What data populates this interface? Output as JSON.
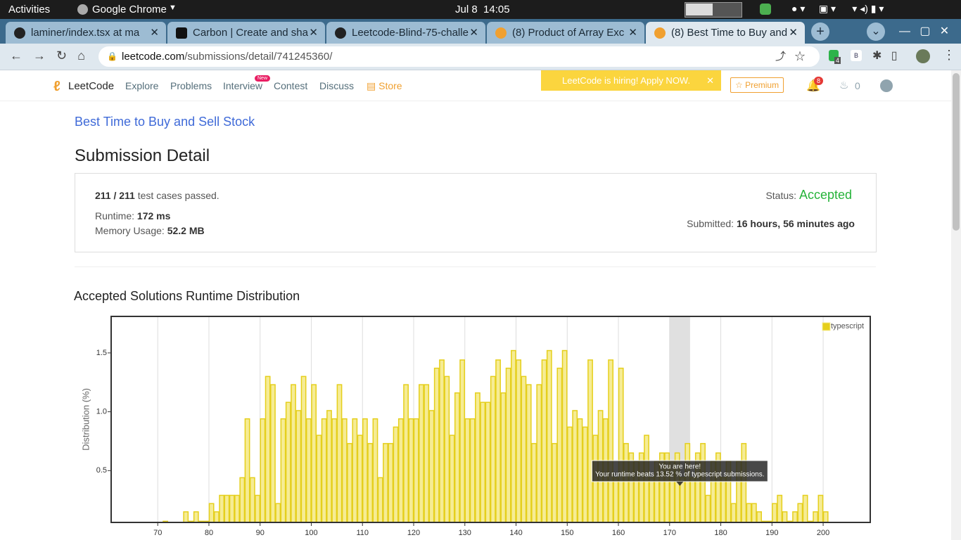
{
  "system_bar": {
    "activities": "Activities",
    "app": "Google Chrome",
    "clock": "Jul 8  14:05"
  },
  "tabs": [
    "laminer/index.tsx at ma",
    "Carbon | Create and sha",
    "Leetcode-Blind-75-challe",
    "(8) Product of Array Exc",
    "(8) Best Time to Buy and"
  ],
  "address": {
    "host": "leetcode.com",
    "path": "/submissions/detail/741245360/"
  },
  "extension_badge": "4",
  "nav": {
    "logo": "LeetCode",
    "links": [
      "Explore",
      "Problems",
      "Interview",
      "Contest",
      "Discuss",
      "Store"
    ],
    "new_badge": "New",
    "banner": "LeetCode is hiring! Apply NOW.",
    "premium": "Premium",
    "notifications": "8",
    "streak": "0"
  },
  "problem_link": "Best Time to Buy and Sell Stock",
  "heading": "Submission Detail",
  "detail": {
    "passed": "211 / 211",
    "passed_text": "test cases passed.",
    "runtime_label": "Runtime:",
    "runtime": "172 ms",
    "memory_label": "Memory Usage:",
    "memory": "52.2 MB",
    "status_label": "Status:",
    "status": "Accepted",
    "submitted_label": "Submitted:",
    "submitted": "16 hours, 56 minutes ago"
  },
  "chart_heading": "Accepted Solutions Runtime Distribution",
  "chart_data": {
    "type": "histogram",
    "y_label": "Distribution (%)",
    "bins": [
      71,
      72,
      73,
      74,
      75,
      76,
      77,
      78,
      79,
      80,
      81,
      82,
      83,
      84,
      85,
      86,
      87,
      88,
      89,
      90,
      91,
      92,
      93,
      94,
      95,
      96,
      97,
      98,
      99,
      100,
      101,
      102,
      103,
      104,
      105,
      106,
      107,
      108,
      109,
      110,
      111,
      112,
      113,
      114,
      115,
      116,
      117,
      118,
      119,
      120,
      121,
      122,
      123,
      124,
      125,
      126,
      127,
      128,
      129,
      130,
      131,
      132,
      133,
      134,
      135,
      136,
      137,
      138,
      139,
      140,
      141,
      142,
      143,
      144,
      145,
      146,
      147,
      148,
      149,
      150,
      151,
      152,
      153,
      154,
      155,
      156,
      157,
      158,
      159,
      160,
      161,
      162,
      163,
      164,
      165,
      166,
      167,
      168,
      169,
      170,
      171,
      172,
      173,
      174,
      175,
      176,
      177,
      178,
      179,
      180,
      181,
      182,
      183,
      184,
      185,
      186,
      187,
      188,
      189,
      190,
      191,
      192,
      193,
      194,
      195,
      196,
      197,
      198,
      199,
      200,
      201
    ],
    "series": [
      {
        "name": "typescript",
        "color": "#e5cf1c",
        "fill": "#f6ec94",
        "values": [
          0.07,
          0,
          0,
          0,
          0.15,
          0.07,
          0.15,
          0.07,
          0.07,
          0.22,
          0.15,
          0.29,
          0.29,
          0.29,
          0.29,
          0.44,
          0.94,
          0.44,
          0.29,
          0.94,
          1.3,
          1.23,
          0.22,
          0.94,
          1.08,
          1.23,
          1.01,
          1.3,
          0.94,
          1.23,
          0.8,
          0.94,
          1.01,
          0.94,
          1.23,
          0.94,
          0.73,
          0.94,
          0.8,
          0.94,
          0.73,
          0.94,
          0.44,
          0.73,
          0.73,
          0.87,
          0.94,
          1.23,
          0.94,
          0.94,
          1.23,
          1.23,
          1.01,
          1.37,
          1.44,
          1.3,
          0.8,
          1.16,
          1.44,
          0.94,
          0.94,
          1.16,
          1.08,
          1.08,
          1.3,
          1.44,
          1.16,
          1.37,
          1.52,
          1.44,
          1.3,
          1.23,
          0.73,
          1.23,
          1.44,
          1.52,
          0.73,
          1.37,
          1.52,
          0.87,
          1.01,
          0.94,
          0.87,
          1.44,
          0.8,
          1.01,
          0.94,
          1.44,
          0.44,
          1.37,
          0.73,
          0.65,
          0.58,
          0.65,
          0.8,
          0.44,
          0.58,
          0.65,
          0.65,
          0.58,
          0.65,
          0.44,
          0.73,
          0.44,
          0.65,
          0.73,
          0.29,
          0.58,
          0.65,
          0.44,
          0.58,
          0.22,
          0.58,
          0.73,
          0.22,
          0.22,
          0.15,
          0.07,
          0.07,
          0.22,
          0.29,
          0.15,
          0.07,
          0.15,
          0.22,
          0.29,
          0.07,
          0.15,
          0.29,
          0.15
        ]
      }
    ],
    "xlim": [
      60.9,
      209.2
    ],
    "xticks": [
      70,
      80,
      90,
      100,
      110,
      120,
      130,
      140,
      150,
      160,
      170,
      180,
      190,
      200
    ],
    "ylim": [
      0.06,
      1.81
    ],
    "yticks": [
      0.5,
      {
        "value": 1,
        "label": "1.0"
      },
      1.5
    ],
    "grid": "x",
    "legend": "upper right",
    "highlight": [
      170,
      174
    ],
    "highlight_color": "#e0e0e0",
    "annotation": {
      "x": 172,
      "title": "You are here!",
      "text": "Your runtime beats 13.52 % of typescript submissions."
    }
  }
}
